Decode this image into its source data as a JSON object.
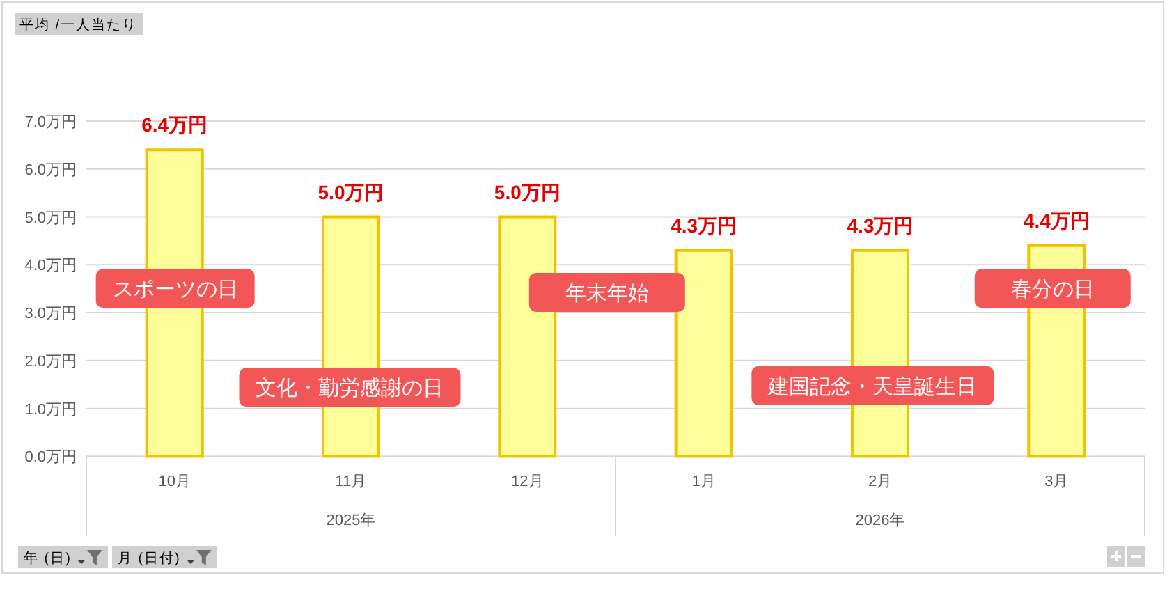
{
  "chart_data": {
    "type": "bar",
    "title": "平均 /一人当たり",
    "categories": [
      "10月",
      "11月",
      "12月",
      "1月",
      "2月",
      "3月"
    ],
    "values": [
      6.4,
      5.0,
      5.0,
      4.3,
      4.3,
      4.4
    ],
    "color": "#ffff99",
    "value_labels": [
      "6.4万円",
      "5.0万円",
      "5.0万円",
      "4.3万円",
      "4.3万円",
      "4.4万円"
    ],
    "ylim": [
      0,
      7
    ],
    "yticks": [
      {
        "value": 0,
        "label": "0.0万円"
      },
      {
        "value": 1,
        "label": "1.0万円"
      },
      {
        "value": 2,
        "label": "2.0万円"
      },
      {
        "value": 3,
        "label": "3.0万円"
      },
      {
        "value": 4,
        "label": "4.0万円"
      },
      {
        "value": 5,
        "label": "5.0万円"
      },
      {
        "value": 6,
        "label": "6.0万円"
      },
      {
        "value": 7,
        "label": "7.0万円"
      }
    ],
    "grid": "y",
    "annotations": [
      "スポーツの日",
      "文化・勤労感謝の日",
      "年末年始",
      "建国記念・天皇誕生日",
      "春分の日",
      "2025年",
      "2026年",
      "年 (日)",
      "月 (日付)"
    ]
  }
}
